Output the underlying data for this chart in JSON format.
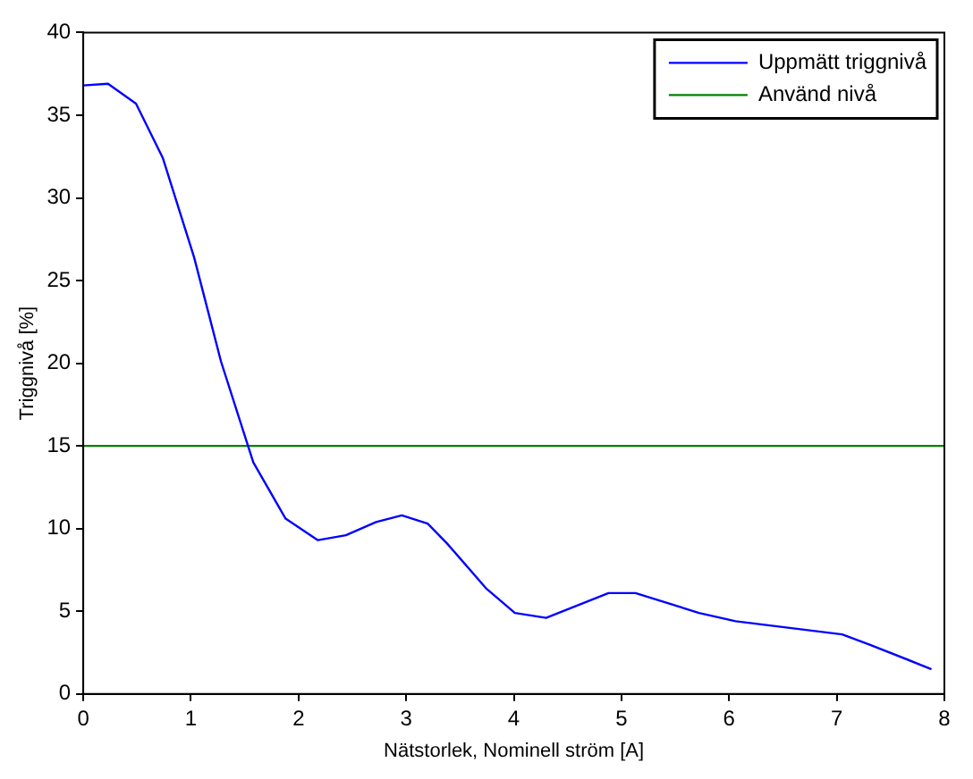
{
  "chart_data": {
    "type": "line",
    "xlabel": "Nätstorlek, Nominell ström [A]",
    "ylabel": "Triggnivå [%]",
    "xlim": [
      0,
      8
    ],
    "xticks": [
      0,
      1,
      2,
      3,
      4,
      5,
      6,
      7,
      8
    ],
    "ylim": [
      0,
      40
    ],
    "yticks": [
      0,
      5,
      10,
      15,
      20,
      25,
      30,
      35,
      40
    ],
    "grid": false,
    "legend": "top right",
    "marker": "none",
    "line_style": "solid",
    "series": [
      {
        "name": "Uppmätt triggnivå",
        "color": "#0000ff",
        "x": [
          0,
          0.23,
          0.49,
          0.74,
          1.03,
          1.28,
          1.58,
          1.88,
          2.18,
          2.44,
          2.72,
          2.96,
          3.2,
          3.38,
          3.74,
          4.01,
          4.3,
          4.88,
          5.13,
          5.72,
          6.06,
          7.05,
          7.3,
          7.88
        ],
        "values": [
          36.8,
          36.9,
          35.7,
          32.4,
          26.4,
          20.1,
          14.0,
          10.6,
          9.3,
          9.6,
          10.4,
          10.8,
          10.3,
          9.1,
          6.4,
          4.9,
          4.6,
          6.1,
          6.1,
          4.9,
          4.4,
          3.6,
          3.0,
          1.5
        ]
      },
      {
        "name": "Använd nivå",
        "color": "#008000",
        "x": [
          0,
          8
        ],
        "values": [
          15,
          15
        ]
      }
    ]
  }
}
